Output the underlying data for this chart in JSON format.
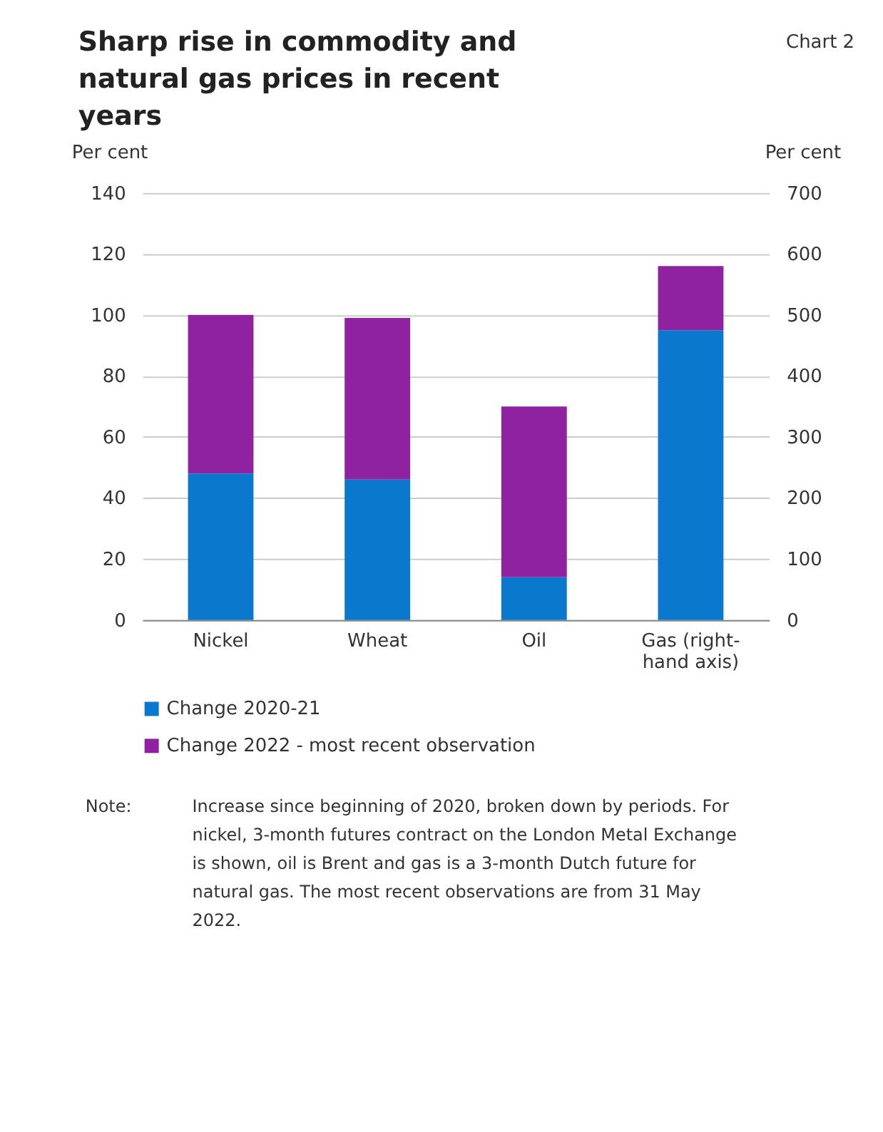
{
  "chart_data": {
    "type": "bar",
    "stacked": true,
    "title": "Sharp rise in commodity and natural gas prices in recent years",
    "ylabel": "Per cent",
    "y2label": "Per cent",
    "categories": [
      "Nickel",
      "Wheat",
      "Oil",
      "Gas (right-hand axis)"
    ],
    "series": [
      {
        "name": "Change 2020-21",
        "color": "#0a78cc",
        "values": [
          48,
          46,
          14,
          null
        ]
      },
      {
        "name": "Change 2022 - most recent observation",
        "color": "#8e22a0",
        "values": [
          52,
          53,
          56,
          null
        ]
      },
      {
        "color": "#0a78cc",
        "axis": "y2",
        "values": [
          null,
          null,
          null,
          475
        ]
      },
      {
        "color": "#8e22a0",
        "axis": "y2",
        "values": [
          null,
          null,
          null,
          105
        ]
      }
    ],
    "ylim": [
      0,
      140
    ],
    "yticks": [
      0,
      20,
      40,
      60,
      80,
      100,
      120,
      140
    ],
    "y2lim": [
      0,
      700
    ],
    "y2ticks": [
      0,
      100,
      200,
      300,
      400,
      500,
      600,
      700
    ],
    "grid": "y",
    "legend": "bottom",
    "annotations": [
      "Chart 2",
      "Note:",
      "Increase since beginning of 2020, broken down by periods. For nickel, 3-month futures contract on the London Metal Exchange is shown, oil is Brent and gas is a 3-month Dutch future for natural gas. The most recent observations are from 31 May 2022."
    ]
  }
}
